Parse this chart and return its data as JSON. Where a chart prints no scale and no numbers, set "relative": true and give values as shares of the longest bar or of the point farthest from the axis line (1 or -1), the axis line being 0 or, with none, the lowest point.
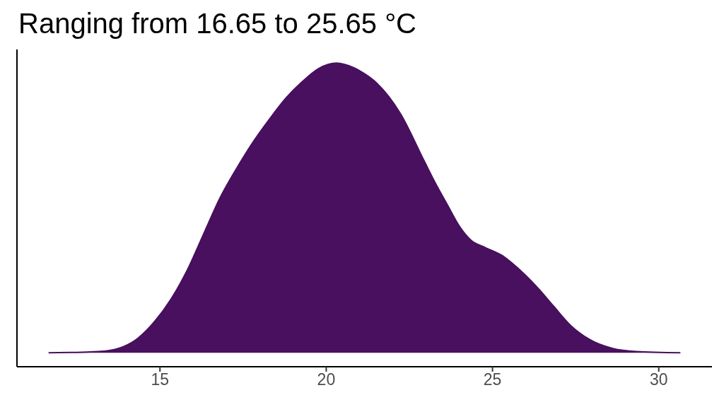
{
  "chart_data": {
    "type": "area",
    "title": "Ranging from 16.65 to 25.65 °C",
    "x": [
      11.65,
      12.3,
      12.9,
      13.37,
      14.35,
      14.84,
      15.34,
      15.83,
      16.32,
      16.81,
      17.31,
      17.8,
      18.29,
      18.79,
      19.28,
      19.77,
      20.31,
      20.82,
      21.03,
      21.52,
      22.23,
      22.94,
      23.3,
      23.65,
      24.01,
      24.36,
      24.79,
      25.35,
      25.78,
      26.35,
      26.84,
      27.34,
      27.9,
      28.62,
      29.33,
      30.65
    ],
    "values": [
      0.046,
      0.047,
      0.049,
      0.052,
      0.095,
      0.149,
      0.224,
      0.32,
      0.439,
      0.557,
      0.654,
      0.74,
      0.815,
      0.885,
      0.939,
      0.982,
      1,
      0.985,
      0.973,
      0.934,
      0.834,
      0.679,
      0.601,
      0.532,
      0.462,
      0.416,
      0.392,
      0.362,
      0.323,
      0.261,
      0.199,
      0.137,
      0.091,
      0.06,
      0.05,
      0.046
    ],
    "color": "#48105e",
    "relative": true,
    "xlim": [
      10.7,
      31.6
    ],
    "xticks": [
      15,
      20,
      25,
      30
    ]
  }
}
